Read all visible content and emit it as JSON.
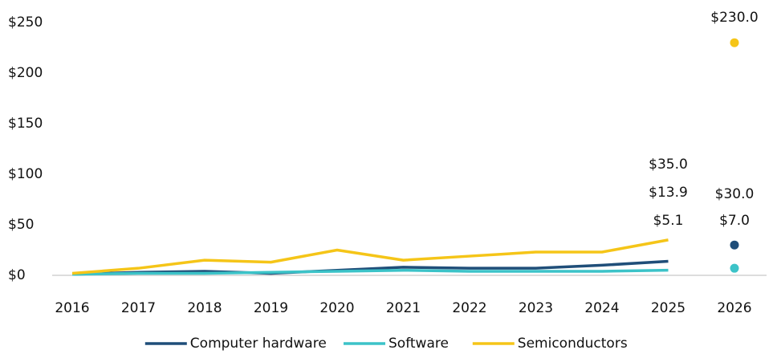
{
  "chart_data": {
    "type": "line",
    "categories": [
      "2016",
      "2017",
      "2018",
      "2019",
      "2020",
      "2021",
      "2022",
      "2023",
      "2024",
      "2025",
      "2026"
    ],
    "ylim": [
      0,
      250
    ],
    "yticks": [
      {
        "value": 0,
        "label": "$0"
      },
      {
        "value": 50,
        "label": "$50"
      },
      {
        "value": 100,
        "label": "$100"
      },
      {
        "value": 150,
        "label": "$150"
      },
      {
        "value": 200,
        "label": "$200"
      },
      {
        "value": 250,
        "label": "$250"
      }
    ],
    "grid": false,
    "legend": "bottom",
    "series": [
      {
        "name": "Computer hardware",
        "color": "#1f4e79",
        "values": [
          1,
          3,
          4,
          2,
          5,
          8,
          7,
          7,
          10,
          13.9,
          null
        ],
        "value_labels": [
          null,
          null,
          null,
          null,
          null,
          null,
          null,
          null,
          null,
          "$13.9",
          null
        ],
        "projection": 30,
        "projection_label": "$30.0"
      },
      {
        "name": "Software",
        "color": "#3cc3c8",
        "values": [
          1,
          2,
          2,
          3,
          4,
          5,
          4,
          4,
          4,
          5.1,
          null
        ],
        "value_labels": [
          null,
          null,
          null,
          null,
          null,
          null,
          null,
          null,
          null,
          "$5.1",
          null
        ],
        "projection": 7,
        "projection_label": "$7.0"
      },
      {
        "name": "Semiconductors",
        "color": "#f5c518",
        "values": [
          2,
          7,
          15,
          13,
          25,
          15,
          19,
          23,
          23,
          35,
          null
        ],
        "value_labels": [
          null,
          null,
          null,
          null,
          null,
          null,
          null,
          null,
          null,
          "$35.0",
          null
        ],
        "projection": 230,
        "projection_label": "$230.0"
      }
    ]
  }
}
